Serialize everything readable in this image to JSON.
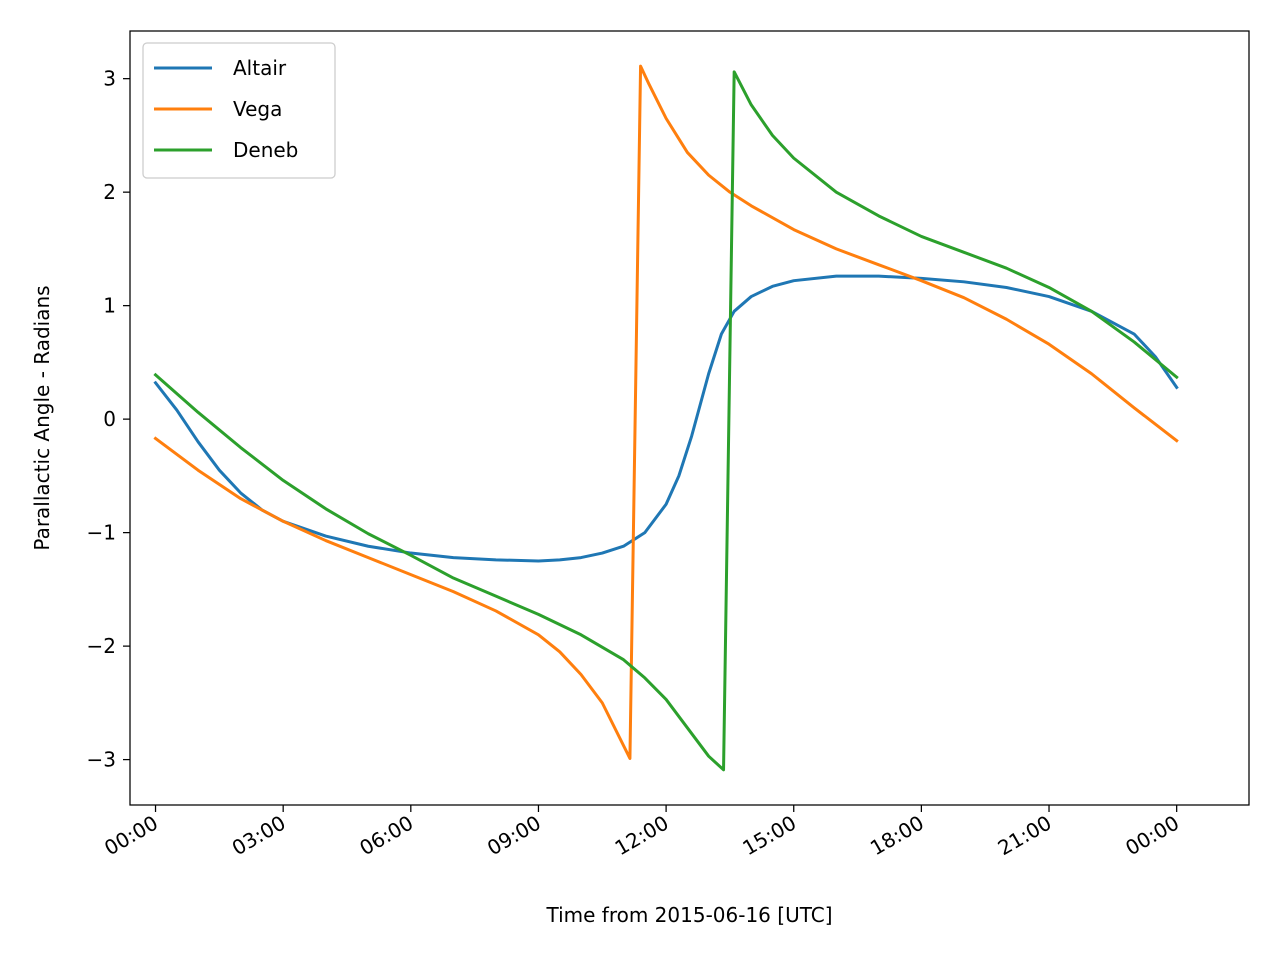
{
  "chart_data": {
    "type": "line",
    "xlabel": "Time from 2015-06-16 [UTC]",
    "ylabel": "Parallactic Angle - Radians",
    "xlim": [
      -0.6,
      25.7
    ],
    "ylim": [
      -3.4,
      3.42
    ],
    "x_ticks": [
      0,
      3,
      6,
      9,
      12,
      15,
      18,
      21,
      24
    ],
    "x_tick_labels": [
      "00:00",
      "03:00",
      "06:00",
      "09:00",
      "12:00",
      "15:00",
      "18:00",
      "21:00",
      "00:00"
    ],
    "y_ticks": [
      -3,
      -2,
      -1,
      0,
      1,
      2,
      3
    ],
    "y_tick_labels": [
      "−3",
      "−2",
      "−1",
      "0",
      "1",
      "2",
      "3"
    ],
    "grid": false,
    "legend_position": "top-left",
    "series": [
      {
        "name": "Altair",
        "color": "#1f77b4",
        "x": [
          0,
          0.5,
          1,
          1.5,
          2,
          2.5,
          3,
          4,
          5,
          6,
          7,
          8,
          9,
          9.5,
          10,
          10.5,
          11,
          11.5,
          12,
          12.3,
          12.6,
          13,
          13.3,
          13.6,
          14,
          14.5,
          15,
          16,
          17,
          18,
          19,
          20,
          21,
          22,
          23,
          23.5,
          24
        ],
        "y": [
          0.32,
          0.08,
          -0.2,
          -0.45,
          -0.65,
          -0.8,
          -0.9,
          -1.03,
          -1.12,
          -1.18,
          -1.22,
          -1.24,
          -1.25,
          -1.24,
          -1.22,
          -1.18,
          -1.12,
          -1.0,
          -0.75,
          -0.5,
          -0.15,
          0.4,
          0.75,
          0.95,
          1.08,
          1.17,
          1.22,
          1.26,
          1.26,
          1.24,
          1.21,
          1.16,
          1.08,
          0.95,
          0.75,
          0.55,
          0.28
        ]
      },
      {
        "name": "Vega",
        "color": "#ff7f0e",
        "x": [
          0,
          1,
          2,
          3,
          4,
          5,
          6,
          7,
          8,
          9,
          9.5,
          10,
          10.5,
          11.15,
          11.4,
          11.6,
          12,
          12.5,
          13,
          13.5,
          14,
          15,
          16,
          17,
          18,
          19,
          20,
          21,
          22,
          23,
          24
        ],
        "y": [
          -0.17,
          -0.45,
          -0.7,
          -0.9,
          -1.07,
          -1.22,
          -1.37,
          -1.52,
          -1.69,
          -1.9,
          -2.05,
          -2.25,
          -2.5,
          -2.99,
          3.11,
          2.95,
          2.65,
          2.35,
          2.15,
          2.0,
          1.88,
          1.67,
          1.5,
          1.36,
          1.22,
          1.07,
          0.88,
          0.66,
          0.4,
          0.1,
          -0.19
        ]
      },
      {
        "name": "Deneb",
        "color": "#2ca02c",
        "x": [
          0,
          1,
          2,
          3,
          4,
          5,
          6,
          7,
          8,
          9,
          10,
          11,
          11.5,
          12,
          12.5,
          13,
          13.35,
          13.6,
          14,
          14.5,
          15,
          16,
          17,
          18,
          19,
          20,
          21,
          22,
          23,
          24
        ],
        "y": [
          0.39,
          0.06,
          -0.25,
          -0.54,
          -0.79,
          -1.01,
          -1.2,
          -1.4,
          -1.56,
          -1.72,
          -1.9,
          -2.12,
          -2.28,
          -2.47,
          -2.72,
          -2.97,
          -3.09,
          3.06,
          2.77,
          2.5,
          2.3,
          2.0,
          1.79,
          1.61,
          1.47,
          1.33,
          1.16,
          0.95,
          0.68,
          0.37
        ]
      }
    ]
  }
}
